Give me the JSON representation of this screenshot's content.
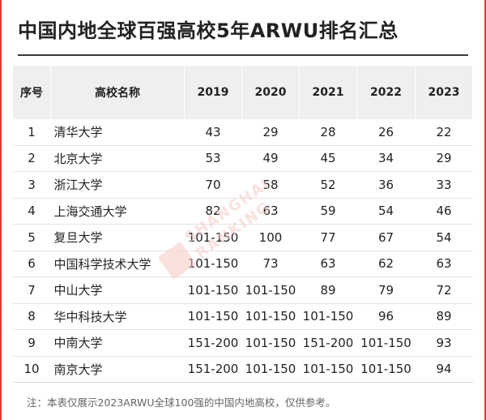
{
  "title": "中国内地全球百强高校5年ARWU排名汇总",
  "table": {
    "headers": [
      "序号",
      "高校名称",
      "2019",
      "2020",
      "2021",
      "2022",
      "2023"
    ],
    "rows": [
      [
        "1",
        "清华大学",
        "43",
        "29",
        "28",
        "26",
        "22"
      ],
      [
        "2",
        "北京大学",
        "53",
        "49",
        "45",
        "34",
        "29"
      ],
      [
        "3",
        "浙江大学",
        "70",
        "58",
        "52",
        "36",
        "33"
      ],
      [
        "4",
        "上海交通大学",
        "82",
        "63",
        "59",
        "54",
        "46"
      ],
      [
        "5",
        "复旦大学",
        "101-150",
        "100",
        "77",
        "67",
        "54"
      ],
      [
        "6",
        "中国科学技术大学",
        "101-150",
        "73",
        "63",
        "62",
        "63"
      ],
      [
        "7",
        "中山大学",
        "101-150",
        "101-150",
        "89",
        "79",
        "72"
      ],
      [
        "8",
        "华中科技大学",
        "101-150",
        "101-150",
        "101-150",
        "96",
        "89"
      ],
      [
        "9",
        "中南大学",
        "151-200",
        "101-150",
        "151-200",
        "101-150",
        "93"
      ],
      [
        "10",
        "南京大学",
        "151-200",
        "101-150",
        "101-150",
        "101-150",
        "94"
      ]
    ]
  },
  "watermark": {
    "text_top": "SHANGHAI",
    "text_bottom": "RANKING"
  },
  "footnote": "注：本表仅展示2023ARWU全球100强的中国内地高校，仅供参考。",
  "colors": {
    "accent": "#e23b2e",
    "header_bg": "#efefef",
    "watermark": "#f6c9c4"
  }
}
